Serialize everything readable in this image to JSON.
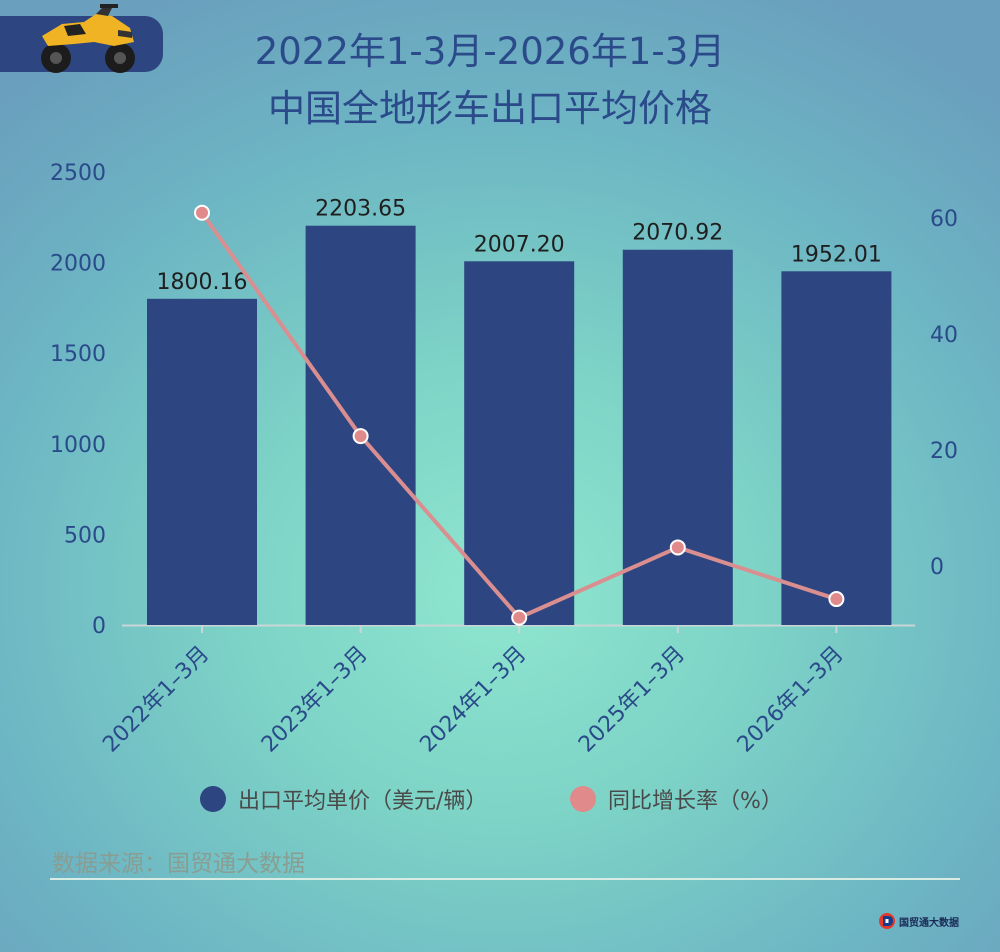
{
  "header": {
    "title_line1": "2022年1-3月-2026年1-3月",
    "title_line2": "中国全地形车出口平均价格"
  },
  "icons": {
    "logo": "atv-icon",
    "brand": "guomaotong-logo-icon"
  },
  "colors": {
    "bar": "#2d4580",
    "line": "#d98f90",
    "point": "#e08a8c",
    "axis_text": "#2a4a8a",
    "background": "#7dd3c6"
  },
  "chart_data": {
    "type": "bar",
    "categories": [
      "2022年1–3月",
      "2023年1–3月",
      "2024年1–3月",
      "2025年1–3月",
      "2026年1–3月"
    ],
    "series": [
      {
        "name": "出口平均单价（美元/辆）",
        "type": "bar",
        "axis": "left",
        "values": [
          1800.16,
          2203.65,
          2007.2,
          2070.92,
          1952.01
        ],
        "labels": [
          "1800.16",
          "2203.65",
          "2007.20",
          "2070.92",
          "1952.01"
        ]
      },
      {
        "name": "同比增长率（%）",
        "type": "line",
        "axis": "right",
        "values": [
          60.9,
          22.4,
          -8.9,
          3.2,
          -5.7
        ]
      }
    ],
    "y_left": {
      "range": [
        0,
        2500
      ],
      "ticks": [
        0,
        500,
        1000,
        1500,
        2000,
        2500
      ]
    },
    "y_right": {
      "range": [
        -10,
        65
      ],
      "ticks": [
        0,
        20,
        40,
        60
      ]
    },
    "grid": false,
    "legend_position": "bottom"
  },
  "source": {
    "text": "数据来源：国贸通大数据"
  },
  "brand": {
    "text": "国贸通大数据"
  }
}
